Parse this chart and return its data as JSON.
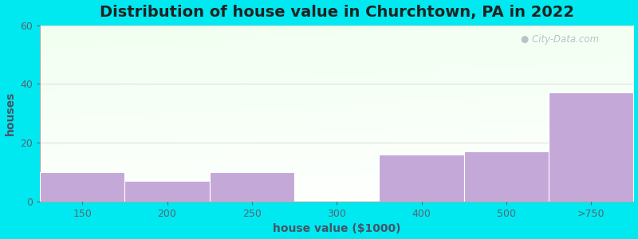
{
  "title": "Distribution of house value in Churchtown, PA in 2022",
  "xlabel": "house value ($1000)",
  "ylabel": "houses",
  "categories": [
    "150",
    "200",
    "250",
    "300",
    "400",
    "500",
    ">750"
  ],
  "values": [
    10,
    7,
    10,
    0,
    16,
    17,
    37
  ],
  "bar_color": "#c4a8d8",
  "ylim": [
    0,
    60
  ],
  "yticks": [
    0,
    20,
    40,
    60
  ],
  "background_outer": "#00e8f0",
  "grid_color": "#dddddd",
  "title_fontsize": 14,
  "axis_label_fontsize": 10,
  "tick_fontsize": 9,
  "watermark_text": "City-Data.com",
  "watermark_color": "#b0b8c0"
}
